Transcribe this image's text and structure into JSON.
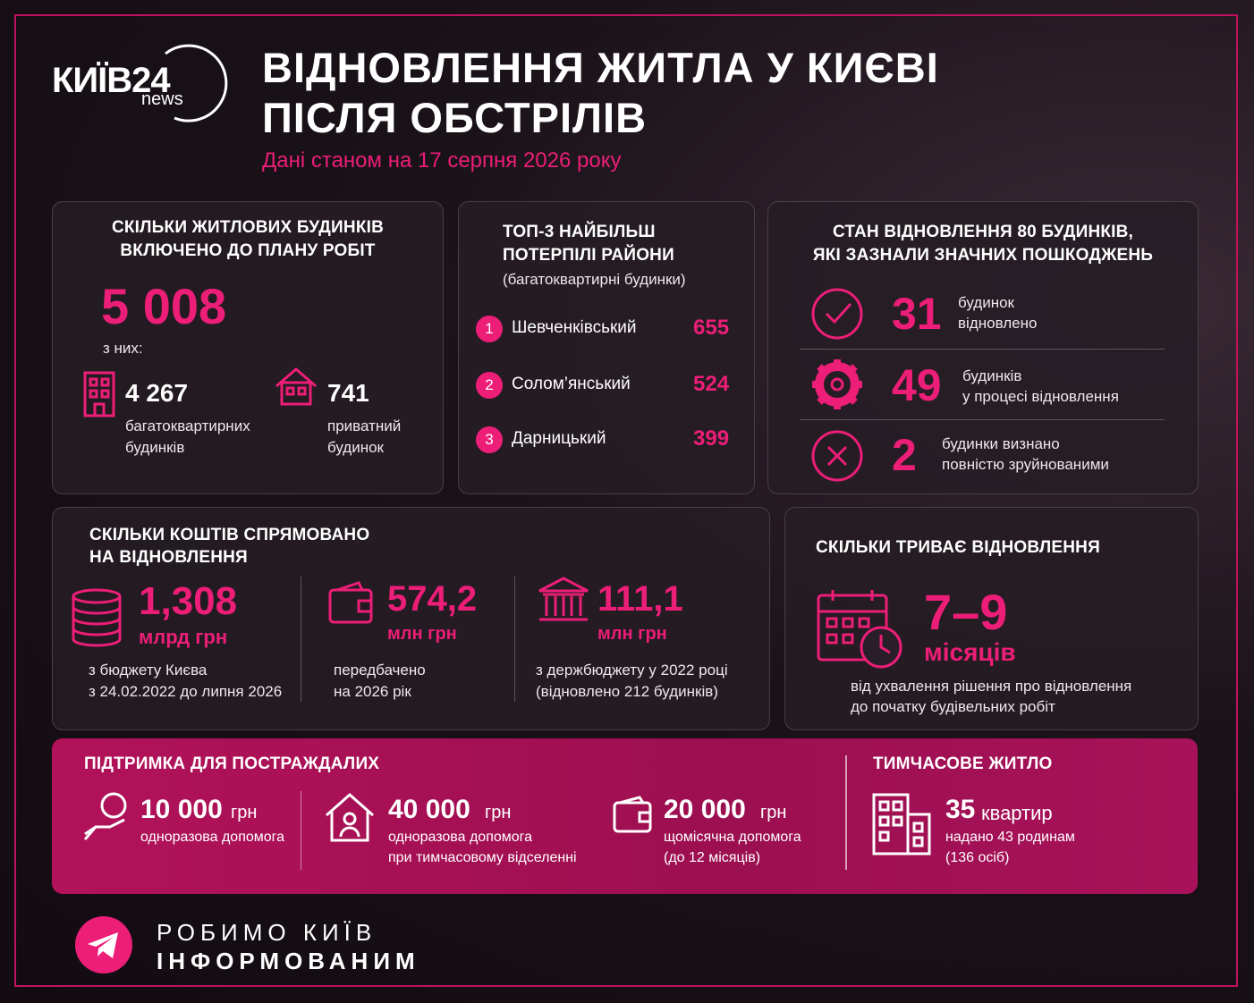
{
  "header": {
    "logo_main": "КИЇВ24",
    "logo_sub": "news",
    "title_line1": "ВІДНОВЛЕННЯ ЖИТЛА У КИЄВІ",
    "title_line2": "ПІСЛЯ ОБСТРІЛІВ",
    "date": "Дані станом на 17 серпня 2026 року"
  },
  "plan": {
    "title_line1": "СКІЛЬКИ ЖИТЛОВИХ БУДИНКІВ",
    "title_line2": "ВКЛЮЧЕНО ДО ПЛАНУ РОБІТ",
    "total": "5 008",
    "of_which": "з них:",
    "items": [
      {
        "value": "4 267",
        "label_line1": "багатоквартирних",
        "label_line2": "будинків"
      },
      {
        "value": "741",
        "label_line1": "приватний",
        "label_line2": "будинок"
      }
    ]
  },
  "districts": {
    "title_line1": "ТОП-3 НАЙБІЛЬШ",
    "title_line2": "ПОТЕРПІЛІ РАЙОНИ",
    "subtitle": "(багатоквартирні будинки)",
    "items": [
      {
        "rank": "1",
        "name": "Шевченківський",
        "value": "655"
      },
      {
        "rank": "2",
        "name": "Солом’янський",
        "value": "524"
      },
      {
        "rank": "3",
        "name": "Дарницький",
        "value": "399"
      }
    ]
  },
  "status": {
    "title_line1": "СТАН ВІДНОВЛЕННЯ 80 БУДИНКІВ,",
    "title_line2": "ЯКІ ЗАЗНАЛИ ЗНАЧНИХ ПОШКОДЖЕНЬ",
    "items": [
      {
        "value": "31",
        "label_line1": "будинок",
        "label_line2": "відновлено"
      },
      {
        "value": "49",
        "label_line1": "будинків",
        "label_line2": "у процесі відновлення"
      },
      {
        "value": "2",
        "label_line1": "будинки визнано",
        "label_line2": "повністю зруйнованими"
      }
    ]
  },
  "funding": {
    "title_line1": "СКІЛЬКИ КОШТІВ СПРЯМОВАНО",
    "title_line2": "НА ВІДНОВЛЕННЯ",
    "items": [
      {
        "value": "1,308",
        "unit": "млрд грн",
        "desc_line1": "з бюджету Києва",
        "desc_line2": "з 24.02.2022 до липня 2026"
      },
      {
        "value": "574,2",
        "unit": "млн грн",
        "desc_line1": "передбачено",
        "desc_line2": "на 2026 рік"
      },
      {
        "value": "111,1",
        "unit": "млн грн",
        "desc_line1": "з держбюджету у 2022 році",
        "desc_line2": "(відновлено 212 будинків)"
      }
    ]
  },
  "duration": {
    "title": "СКІЛЬКИ ТРИВАЄ ВІДНОВЛЕННЯ",
    "value": "7–9",
    "unit": "місяців",
    "desc_line1": "від ухвалення рішення про відновлення",
    "desc_line2": "до початку будівельних робіт"
  },
  "support": {
    "title": "ПІДТРИМКА ДЛЯ ПОСТРАЖДАЛИХ",
    "items": [
      {
        "value": "10 000",
        "unit": "грн",
        "desc_line1": "одноразова допомога",
        "desc_line2": null
      },
      {
        "value": "40 000",
        "unit": "грн",
        "desc_line1": "одноразова допомога",
        "desc_line2": "при тимчасовому відселенні"
      },
      {
        "value": "20 000",
        "unit": "грн",
        "desc_line1": "щомісячна допомога",
        "desc_line2": "(до 12 місяців)"
      }
    ]
  },
  "housing": {
    "title": "ТИМЧАСОВЕ ЖИТЛО",
    "value": "35",
    "unit": "квартир",
    "desc_line1": "надано 43 родинам",
    "desc_line2": "(136 осіб)"
  },
  "footer": {
    "line1": "РОБИМО КИЇВ",
    "line2": "ІНФОРМОВАНИМ"
  }
}
